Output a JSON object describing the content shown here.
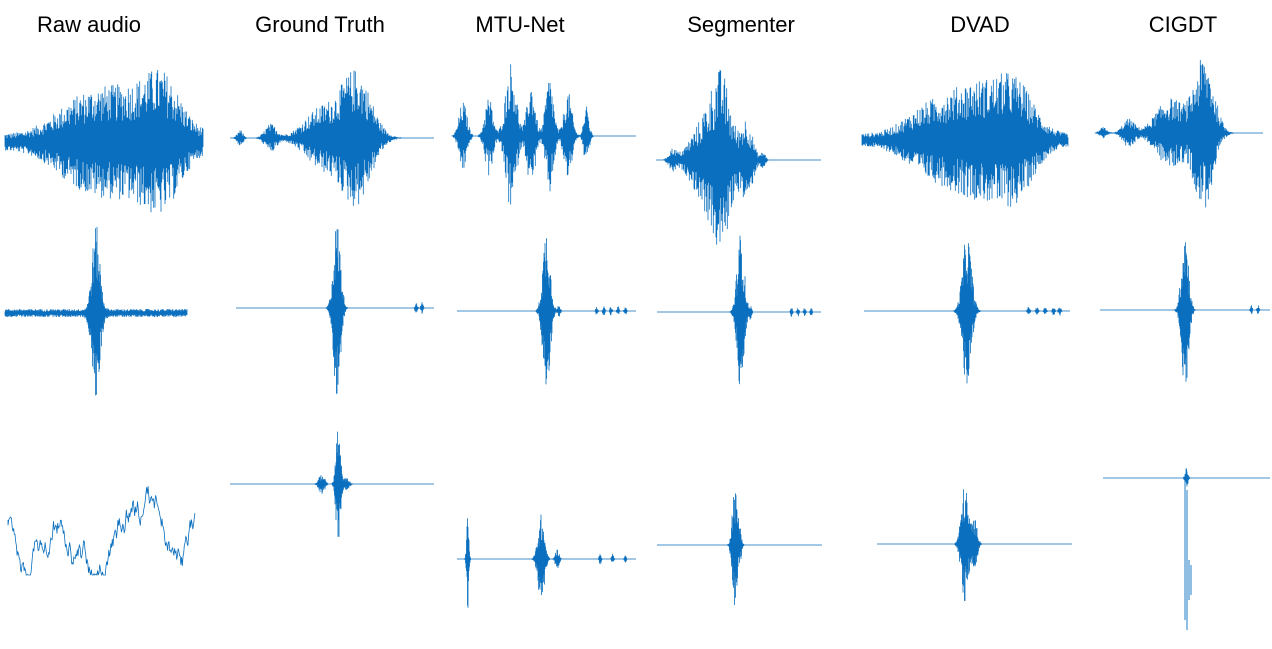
{
  "columns": [
    {
      "title": "Raw audio"
    },
    {
      "title": "Ground Truth"
    },
    {
      "title": "MTU-Net"
    },
    {
      "title": "Segmenter"
    },
    {
      "title": "DVAD"
    },
    {
      "title": "CIGDT"
    }
  ],
  "rows_count": 3,
  "waveform_color": "#0a6fbe"
}
